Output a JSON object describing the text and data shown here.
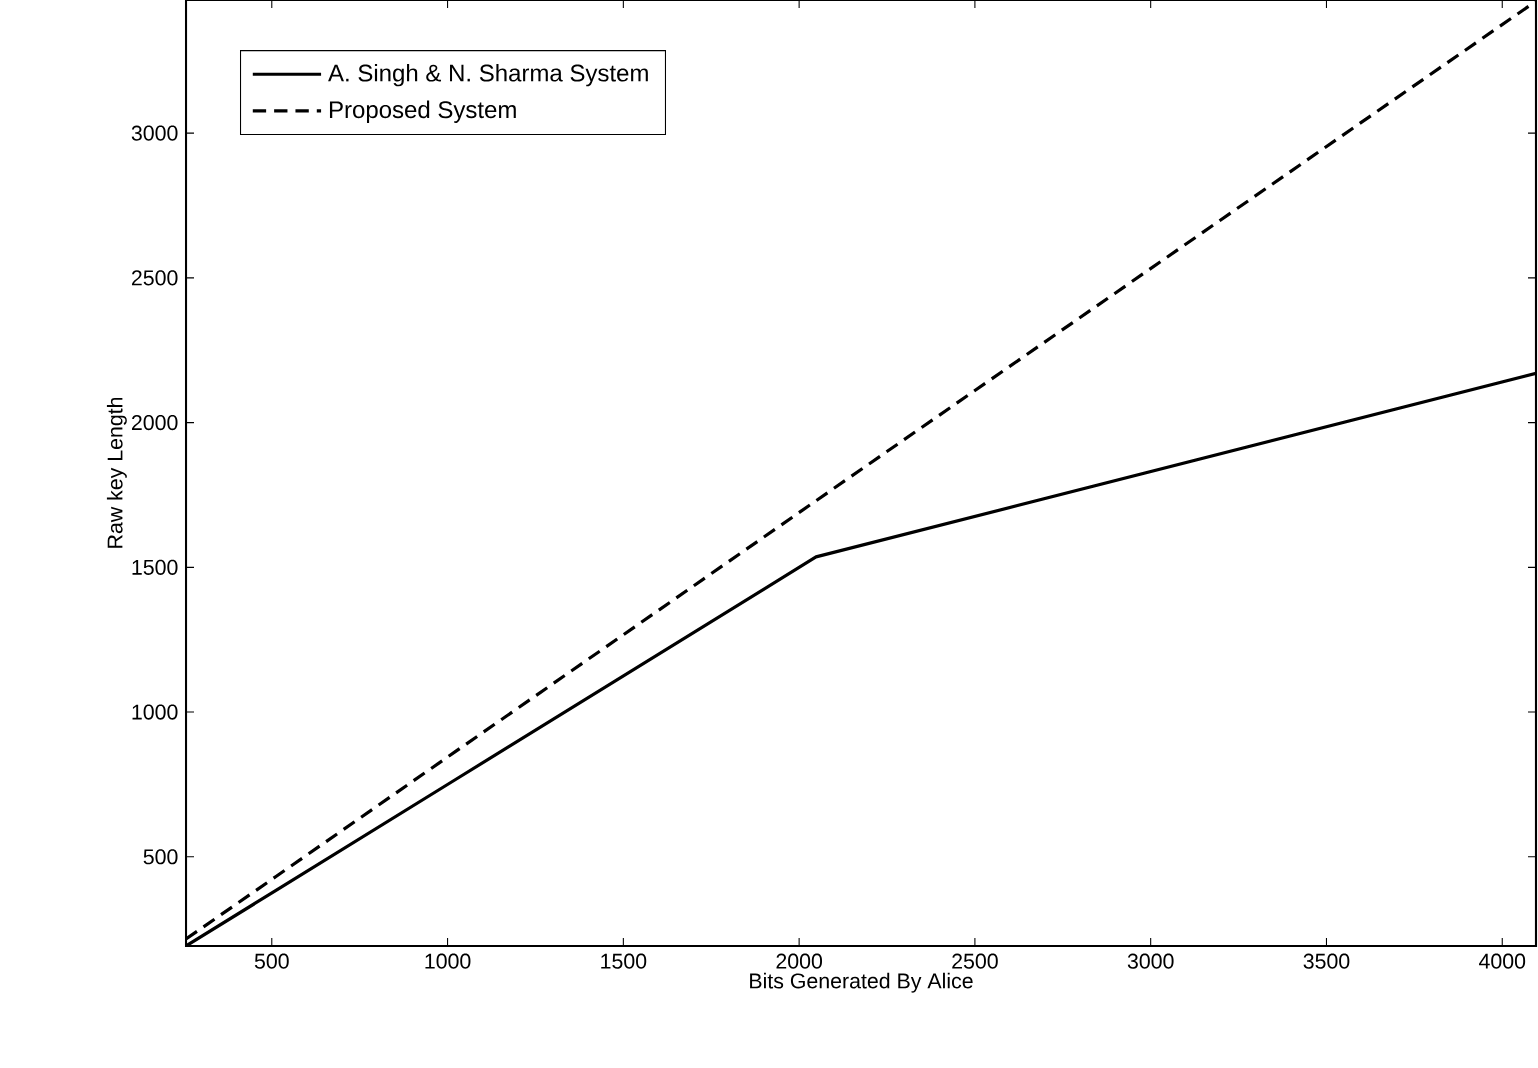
{
  "chart_data": {
    "type": "line",
    "xlabel": "Bits Generated By Alice",
    "ylabel": "Raw key Length",
    "x": [
      256,
      512,
      1024,
      2048,
      4096
    ],
    "series": [
      {
        "name": "A. Singh & N. Sharma System",
        "color": "#000000",
        "line_style": "solid",
        "values": [
          192,
          384,
          768,
          1536,
          2170
        ]
      },
      {
        "name": "Proposed System",
        "color": "#000000",
        "line_style": "dashed",
        "values": [
          216,
          432,
          865,
          1730,
          3456
        ]
      }
    ],
    "xlim": [
      256,
      4096
    ],
    "ylim": [
      192,
      3460
    ],
    "xticks": [
      500,
      1000,
      1500,
      2000,
      2500,
      3000,
      3500,
      4000
    ],
    "yticks": [
      500,
      1000,
      1500,
      2000,
      2500,
      3000
    ],
    "grid": false,
    "legend": "top left",
    "marker": "none"
  }
}
